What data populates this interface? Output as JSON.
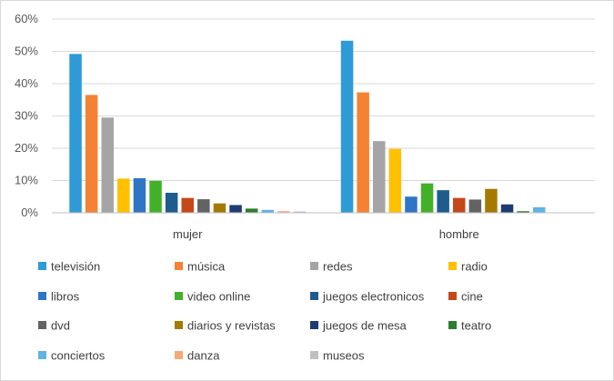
{
  "chart_data": {
    "type": "bar",
    "categories": [
      "mujer",
      "hombre"
    ],
    "y_ticks": [
      "0%",
      "10%",
      "20%",
      "30%",
      "40%",
      "50%",
      "60%"
    ],
    "ylim": [
      0,
      60
    ],
    "grid": true,
    "legend_position": "bottom",
    "series": [
      {
        "name": "televisión",
        "color": "#2E9BD6",
        "values": [
          49.2,
          53.3
        ]
      },
      {
        "name": "música",
        "color": "#F58233",
        "values": [
          36.5,
          37.3
        ]
      },
      {
        "name": "redes",
        "color": "#A5A5A5",
        "values": [
          29.5,
          22.2
        ]
      },
      {
        "name": "radio",
        "color": "#FFC000",
        "values": [
          10.6,
          19.8
        ]
      },
      {
        "name": "libros",
        "color": "#2E75C6",
        "values": [
          10.7,
          5.0
        ]
      },
      {
        "name": " video online",
        "color": "#43B02A",
        "values": [
          9.9,
          9.1
        ]
      },
      {
        "name": "juegos electronicos",
        "color": "#1F5C8E",
        "values": [
          6.2,
          7.0
        ]
      },
      {
        "name": "cine",
        "color": "#C5481A",
        "values": [
          4.6,
          4.6
        ]
      },
      {
        "name": "dvd",
        "color": "#636363",
        "values": [
          4.2,
          4.1
        ]
      },
      {
        "name": "diarios y revistas",
        "color": "#A57900",
        "values": [
          2.9,
          7.4
        ]
      },
      {
        "name": "juegos de mesa",
        "color": "#1F3B73",
        "values": [
          2.4,
          2.6
        ]
      },
      {
        "name": "teatro",
        "color": "#2F7D32",
        "values": [
          1.3,
          0.5
        ]
      },
      {
        "name": "conciertos",
        "color": "#5FB3E6",
        "values": [
          0.9,
          1.7
        ]
      },
      {
        "name": "danza",
        "color": "#F8A978",
        "values": [
          0.5,
          0.0
        ]
      },
      {
        "name": "museos",
        "color": "#BFBFBF",
        "values": [
          0.4,
          0.0
        ]
      }
    ]
  }
}
